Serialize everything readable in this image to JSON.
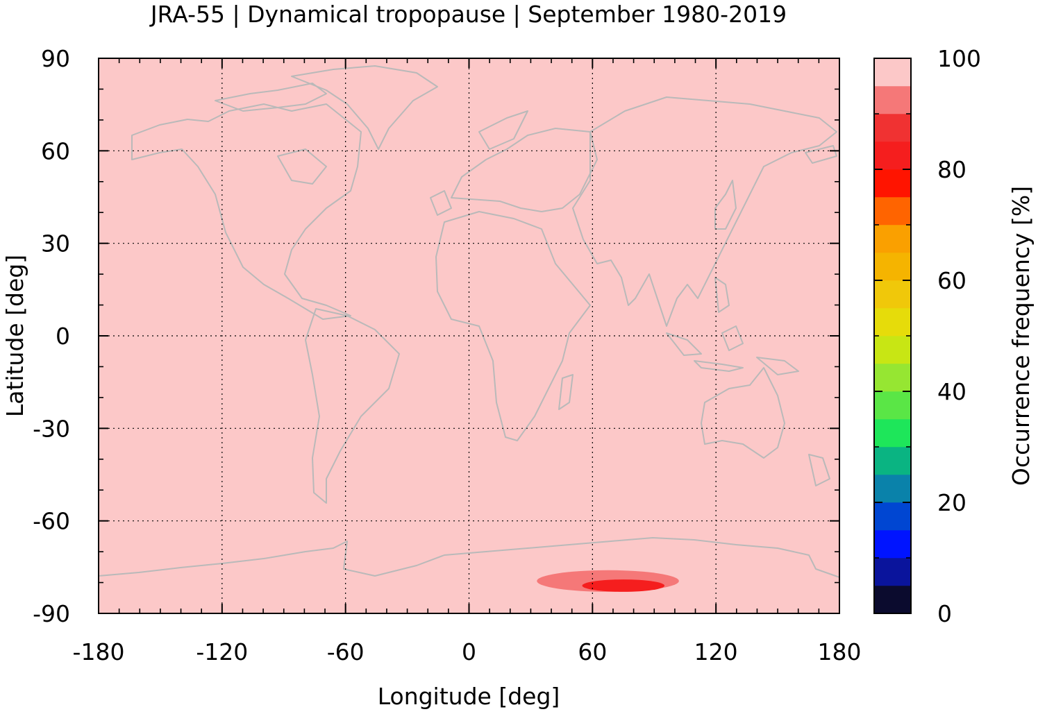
{
  "chart_data": {
    "type": "heatmap",
    "title": "JRA-55 | Dynamical tropopause | September 1980-2019",
    "xlabel": "Longitude [deg]",
    "ylabel": "Latitude [deg]",
    "xlim": [
      -180,
      180
    ],
    "ylim": [
      -90,
      90
    ],
    "x_ticks": [
      "-180",
      "-120",
      "-60",
      "0",
      "60",
      "120",
      "180"
    ],
    "y_ticks": [
      "90",
      "60",
      "30",
      "0",
      "-30",
      "-60",
      "-90"
    ],
    "grid": true,
    "background_value": 100,
    "map_overlay": "coastlines",
    "colorbar": {
      "label": "Occurrence frequency [%]",
      "ticks": [
        "0",
        "20",
        "40",
        "60",
        "80",
        "100"
      ],
      "range": [
        0,
        100
      ],
      "levels": [
        {
          "lo": 0,
          "hi": 5,
          "color": "#0b0b2e"
        },
        {
          "lo": 5,
          "hi": 10,
          "color": "#0a149c"
        },
        {
          "lo": 10,
          "hi": 15,
          "color": "#0014ff"
        },
        {
          "lo": 15,
          "hi": 20,
          "color": "#0046d2"
        },
        {
          "lo": 20,
          "hi": 25,
          "color": "#0a82aa"
        },
        {
          "lo": 25,
          "hi": 30,
          "color": "#0ab482"
        },
        {
          "lo": 30,
          "hi": 35,
          "color": "#1ee65a"
        },
        {
          "lo": 35,
          "hi": 40,
          "color": "#5ae646"
        },
        {
          "lo": 40,
          "hi": 45,
          "color": "#96e632"
        },
        {
          "lo": 45,
          "hi": 50,
          "color": "#c8e614"
        },
        {
          "lo": 50,
          "hi": 55,
          "color": "#e6dc0a"
        },
        {
          "lo": 55,
          "hi": 60,
          "color": "#f0c80a"
        },
        {
          "lo": 60,
          "hi": 65,
          "color": "#f5b400"
        },
        {
          "lo": 65,
          "hi": 70,
          "color": "#faa000"
        },
        {
          "lo": 70,
          "hi": 75,
          "color": "#ff6400"
        },
        {
          "lo": 75,
          "hi": 80,
          "color": "#ff1400"
        },
        {
          "lo": 80,
          "hi": 85,
          "color": "#f51e1e"
        },
        {
          "lo": 85,
          "hi": 90,
          "color": "#f03232"
        },
        {
          "lo": 90,
          "hi": 95,
          "color": "#f57878"
        },
        {
          "lo": 95,
          "hi": 100,
          "color": "#fcc8c8"
        }
      ]
    },
    "anomalies": [
      {
        "lon_range": [
          33,
          102
        ],
        "lat_range": [
          -83,
          -76
        ],
        "value": 92.5
      },
      {
        "lon_range": [
          55,
          95
        ],
        "lat_range": [
          -83,
          -79
        ],
        "value": 82.5
      }
    ]
  }
}
